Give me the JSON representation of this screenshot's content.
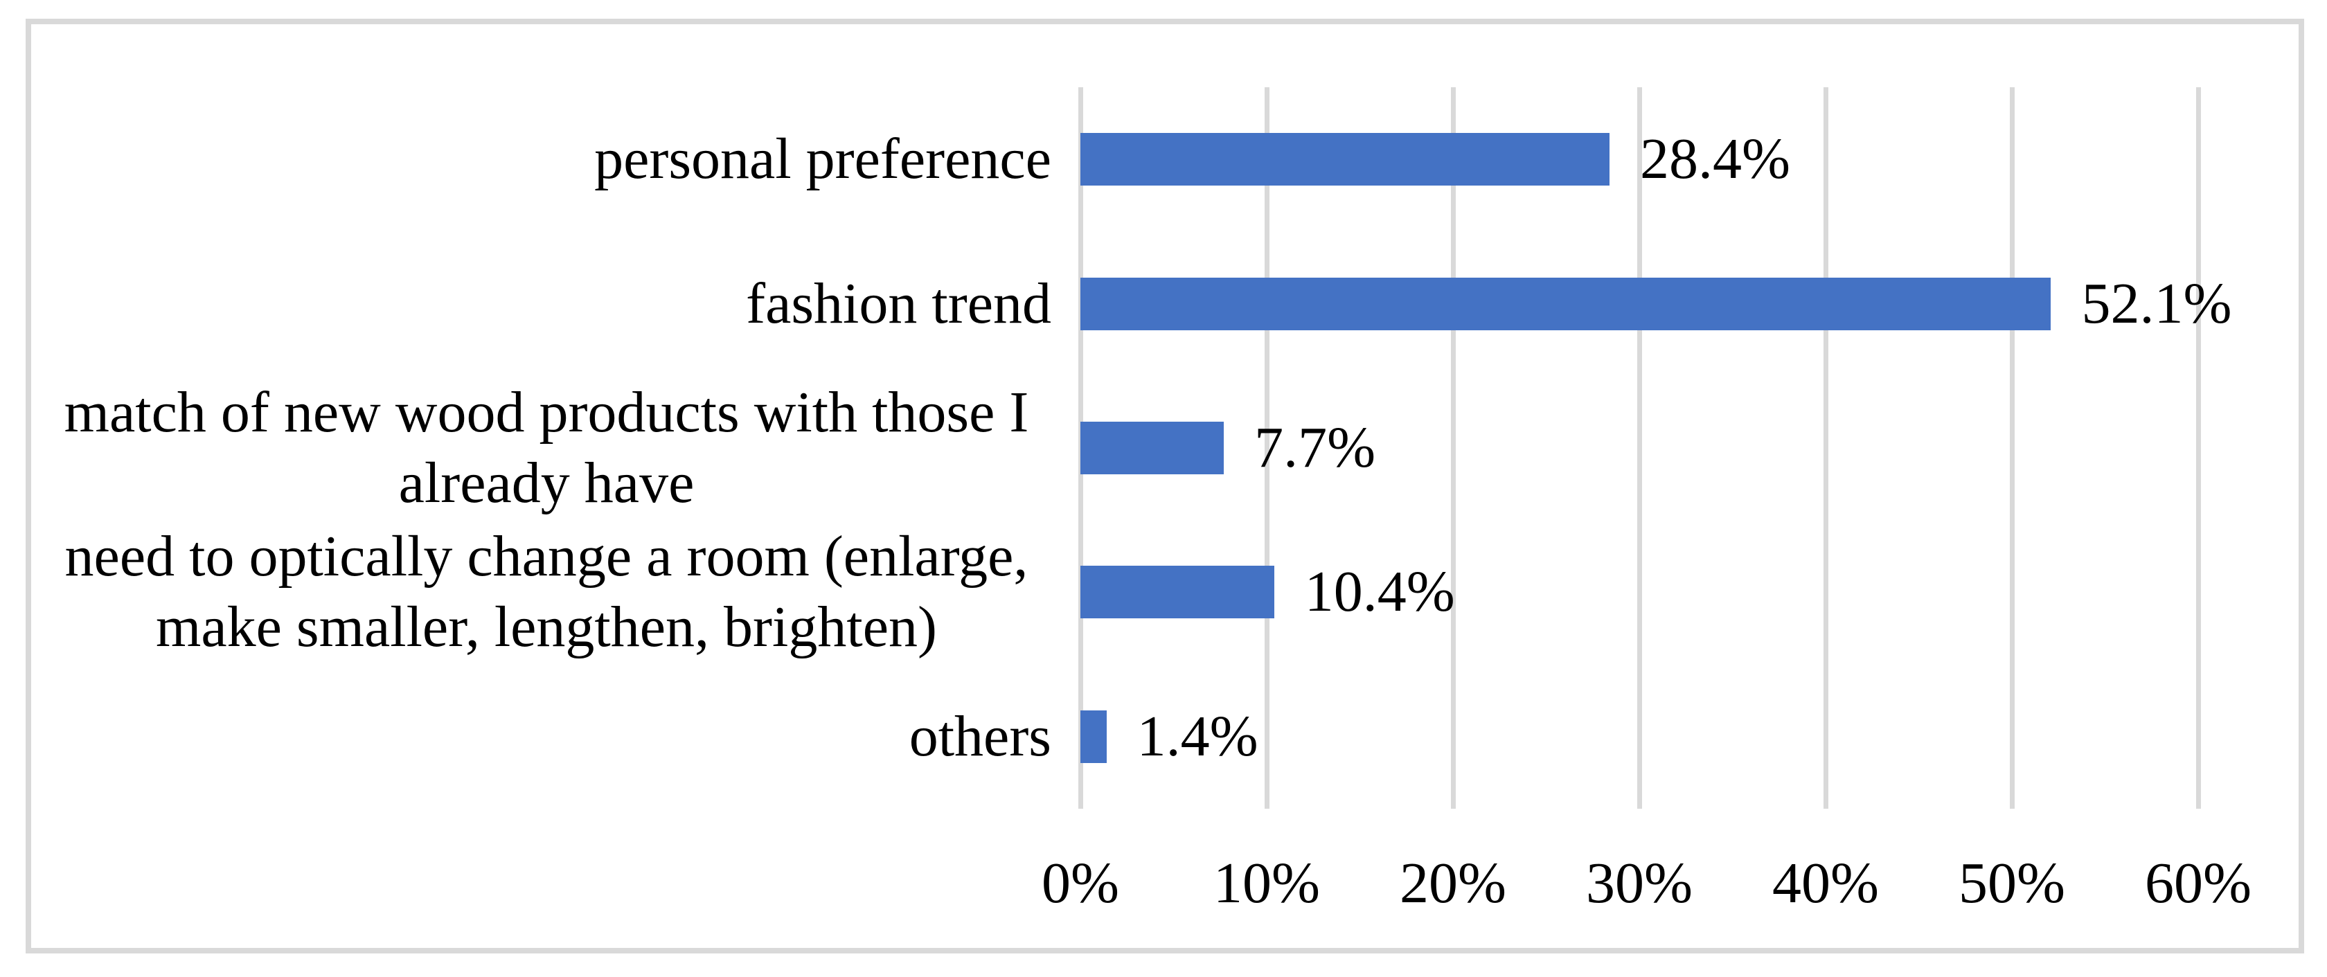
{
  "figure": {
    "background_color": "#ffffff",
    "frame_color": "#d9d9d9"
  },
  "chart_data": {
    "type": "bar",
    "orientation": "horizontal",
    "title": "",
    "xlabel": "",
    "ylabel": "",
    "categories": [
      "personal preference",
      "fashion trend",
      "match of new wood products with those I\nalready have",
      "need to optically change a room (enlarge,\nmake smaller, lengthen, brighten)",
      "others"
    ],
    "values": [
      28.4,
      52.1,
      7.7,
      10.4,
      1.4
    ],
    "value_labels": [
      "28.4%",
      "52.1%",
      "7.7%",
      "10.4%",
      "1.4%"
    ],
    "x_ticks": [
      "0%",
      "10%",
      "20%",
      "30%",
      "40%",
      "50%",
      "60%"
    ],
    "xlim": [
      0,
      60
    ],
    "grid": true,
    "legend": false,
    "bar_color": "#4472c4",
    "gridline_color": "#d9d9d9",
    "text_color": "#000000"
  }
}
